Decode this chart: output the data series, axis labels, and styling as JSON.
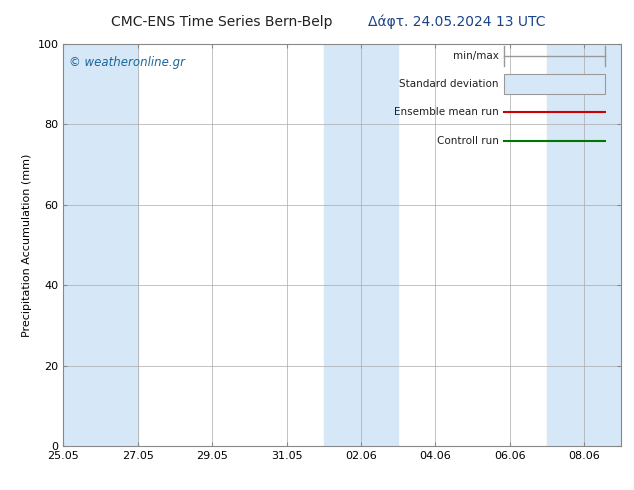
{
  "title_left": "CMC-ENS Time Series Bern-Belp",
  "title_right": "Δάφτ. 24.05.2024 13 UTC",
  "ylabel": "Precipitation Accumulation (mm)",
  "watermark": "© weatheronline.gr",
  "ylim": [
    0,
    100
  ],
  "yticks": [
    0,
    20,
    40,
    60,
    80,
    100
  ],
  "xtick_labels": [
    "25.05",
    "27.05",
    "29.05",
    "31.05",
    "02.06",
    "04.06",
    "06.06",
    "08.06"
  ],
  "xtick_positions": [
    0,
    2,
    4,
    6,
    8,
    10,
    12,
    14
  ],
  "x_min": 0,
  "x_max": 15,
  "shaded_bands": [
    [
      0,
      1
    ],
    [
      1,
      2
    ],
    [
      7,
      8
    ],
    [
      8,
      9
    ],
    [
      13,
      14
    ],
    [
      14,
      15
    ]
  ],
  "band_color": "#d6e8f7",
  "background_color": "#ffffff",
  "plot_bg_color": "#ffffff",
  "grid_color": "#aaaaaa",
  "legend_items": [
    {
      "label": "min/max",
      "color": "#aaaaaa",
      "style": "minmax"
    },
    {
      "label": "Standard deviation",
      "color": "#d6e8f7",
      "style": "stddev"
    },
    {
      "label": "Ensemble mean run",
      "color": "#cc0000",
      "style": "line"
    },
    {
      "label": "Controll run",
      "color": "#007700",
      "style": "line"
    }
  ],
  "title_fontsize": 10,
  "label_fontsize": 8,
  "tick_fontsize": 8,
  "legend_fontsize": 7.5,
  "watermark_fontsize": 8.5,
  "watermark_color": "#1a6699"
}
